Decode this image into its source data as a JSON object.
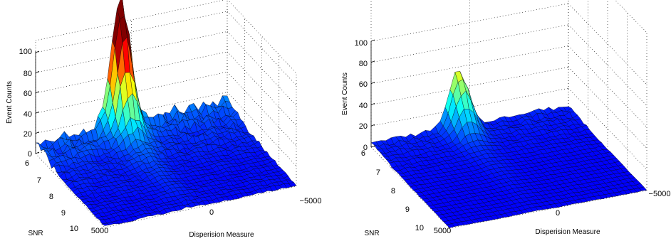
{
  "chart_data": [
    {
      "type": "surface",
      "xlabel": "Disperision Measure",
      "ylabel": "SNR",
      "zlabel": "Event Counts",
      "x_ticks": [
        "5000",
        "0",
        "−5000"
      ],
      "x_tick_values": [
        5000,
        0,
        -5000
      ],
      "y_ticks": [
        "6",
        "7",
        "8",
        "9",
        "10"
      ],
      "y_tick_values": [
        6,
        7,
        8,
        9,
        10
      ],
      "z_ticks": [
        "0",
        "20",
        "40",
        "60",
        "80",
        "100"
      ],
      "z_tick_values": [
        0,
        20,
        40,
        60,
        80,
        100
      ],
      "xlim": [
        5000,
        -5000
      ],
      "ylim": [
        6,
        10
      ],
      "zlim": [
        0,
        100
      ],
      "grid": true,
      "colormap": "jet",
      "peak": {
        "dm": 600,
        "snr": 6,
        "count": 105
      },
      "background_counts": 12
    },
    {
      "type": "surface",
      "xlabel": "Disperision Measure",
      "ylabel": "SNR",
      "zlabel": "Event Counts",
      "x_ticks": [
        "5000",
        "0",
        "−5000"
      ],
      "x_tick_values": [
        5000,
        0,
        -5000
      ],
      "y_ticks": [
        "6",
        "7",
        "8",
        "9",
        "10"
      ],
      "y_tick_values": [
        6,
        7,
        8,
        9,
        10
      ],
      "z_ticks": [
        "0",
        "20",
        "40",
        "60",
        "80",
        "100"
      ],
      "z_tick_values": [
        0,
        20,
        40,
        60,
        80,
        100
      ],
      "xlim": [
        5000,
        -5000
      ],
      "ylim": [
        6,
        10
      ],
      "zlim": [
        0,
        100
      ],
      "grid": true,
      "colormap": "jet",
      "peak": {
        "dm": 600,
        "snr": 6,
        "count": 45
      },
      "background_counts": 4
    }
  ]
}
